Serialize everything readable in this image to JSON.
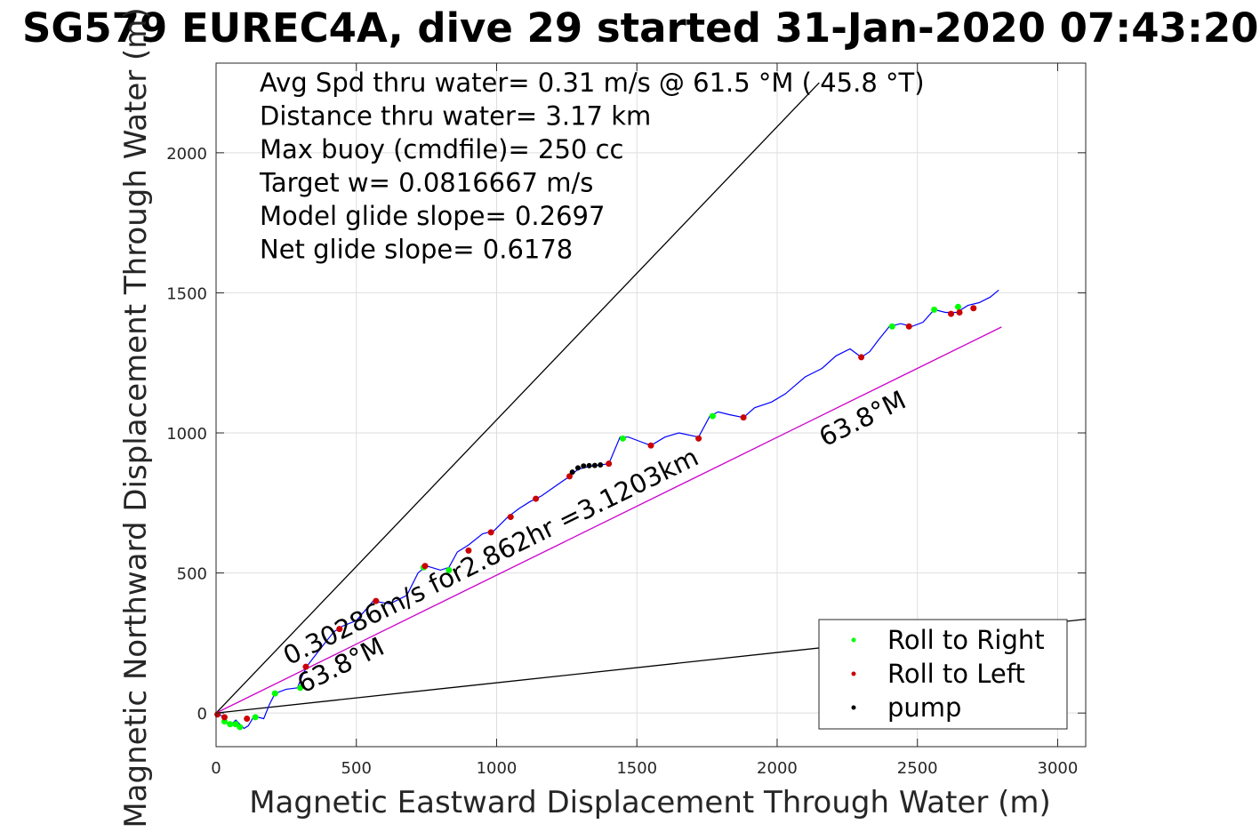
{
  "chart_data": {
    "type": "scatter",
    "title": "SG579 EUREC4A, dive 29 started 31-Jan-2020 07:43:20",
    "xlabel": "Magnetic Eastward Displacement Through Water (m)",
    "ylabel": "Magnetic Northward Displacement Through Water (m)",
    "xlim": [
      0,
      3100
    ],
    "ylim": [
      -120,
      2320
    ],
    "xticks": [
      0,
      500,
      1000,
      1500,
      2000,
      2500,
      3000
    ],
    "yticks": [
      0,
      500,
      1000,
      1500,
      2000
    ],
    "grid": true,
    "info_lines": [
      "Avg Spd thru water=  0.31 m/s @  61.5 °M ( 45.8 °T)",
      "Distance thru water=  3.17 km",
      "Max buoy (cmdfile)= 250 cc",
      "Target w= 0.0816667 m/s",
      "Model glide slope= 0.2697",
      "Net glide slope= 0.6178"
    ],
    "annotations": [
      {
        "text": "0.30286m/s for2.862hr =3.1203km",
        "x": 260,
        "y": 170,
        "angle_deg": 26.2
      },
      {
        "text": "63.8°M",
        "x": 310,
        "y": 70,
        "angle_deg": 26.2
      },
      {
        "text": "63.8°M",
        "x": 2170,
        "y": 950,
        "angle_deg": 26.2
      }
    ],
    "reference_lines": [
      {
        "name": "",
        "color": "#000000",
        "x": [
          0,
          2150
        ],
        "y": [
          0,
          2250
        ]
      },
      {
        "name": "",
        "color": "#000000",
        "x": [
          0,
          3100
        ],
        "y": [
          0,
          335
        ]
      },
      {
        "name": "",
        "color": "#cc00cc",
        "x": [
          0,
          2800
        ],
        "y": [
          0,
          1378
        ]
      }
    ],
    "track": {
      "color": "#0000ff",
      "x": [
        0,
        20,
        35,
        55,
        70,
        85,
        100,
        115,
        130,
        150,
        170,
        190,
        210,
        250,
        290,
        310,
        330,
        380,
        420,
        450,
        500,
        560,
        620,
        680,
        720,
        750,
        800,
        830,
        860,
        900,
        950,
        990,
        1040,
        1080,
        1120,
        1160,
        1210,
        1260,
        1290,
        1330,
        1400,
        1440,
        1470,
        1510,
        1550,
        1600,
        1650,
        1720,
        1760,
        1790,
        1830,
        1880,
        1920,
        1980,
        2030,
        2100,
        2160,
        2210,
        2260,
        2300,
        2330,
        2360,
        2400,
        2440,
        2480,
        2520,
        2560,
        2600,
        2640,
        2680,
        2720,
        2760,
        2790
      ],
      "y": [
        0,
        -10,
        -35,
        -40,
        -25,
        -40,
        -55,
        -45,
        -20,
        -15,
        -20,
        30,
        70,
        85,
        90,
        140,
        175,
        240,
        290,
        310,
        330,
        400,
        390,
        420,
        500,
        525,
        510,
        520,
        575,
        600,
        640,
        650,
        700,
        730,
        755,
        775,
        810,
        845,
        870,
        880,
        890,
        985,
        985,
        970,
        955,
        985,
        1000,
        985,
        1060,
        1075,
        1065,
        1055,
        1090,
        1110,
        1140,
        1200,
        1230,
        1275,
        1300,
        1270,
        1290,
        1330,
        1380,
        1390,
        1380,
        1395,
        1440,
        1430,
        1430,
        1455,
        1465,
        1485,
        1510
      ]
    },
    "series": [
      {
        "name": "Roll to Right",
        "color": "#00ff00",
        "x": [
          30,
          50,
          70,
          85,
          140,
          210,
          300,
          740,
          830,
          1450,
          1770,
          2410,
          2560,
          2645
        ],
        "y": [
          -30,
          -40,
          -40,
          -50,
          -15,
          70,
          90,
          520,
          510,
          980,
          1060,
          1380,
          1440,
          1450
        ]
      },
      {
        "name": "Roll to Left",
        "color": "#cc0000",
        "x": [
          5,
          30,
          110,
          320,
          440,
          570,
          745,
          900,
          980,
          1050,
          1140,
          1260,
          1400,
          1550,
          1720,
          1880,
          2300,
          2470,
          2620,
          2650,
          2700
        ],
        "y": [
          -5,
          -15,
          -20,
          165,
          300,
          400,
          525,
          580,
          645,
          700,
          765,
          845,
          890,
          955,
          980,
          1055,
          1270,
          1380,
          1425,
          1430,
          1445
        ]
      },
      {
        "name": "pump",
        "color": "#000000",
        "x": [
          1270,
          1290,
          1310,
          1330,
          1350,
          1370
        ],
        "y": [
          860,
          875,
          882,
          883,
          884,
          886
        ]
      }
    ],
    "legend": {
      "placement": "bottom-right",
      "entries": [
        "Roll to Right",
        "Roll to Left",
        "pump"
      ]
    }
  }
}
